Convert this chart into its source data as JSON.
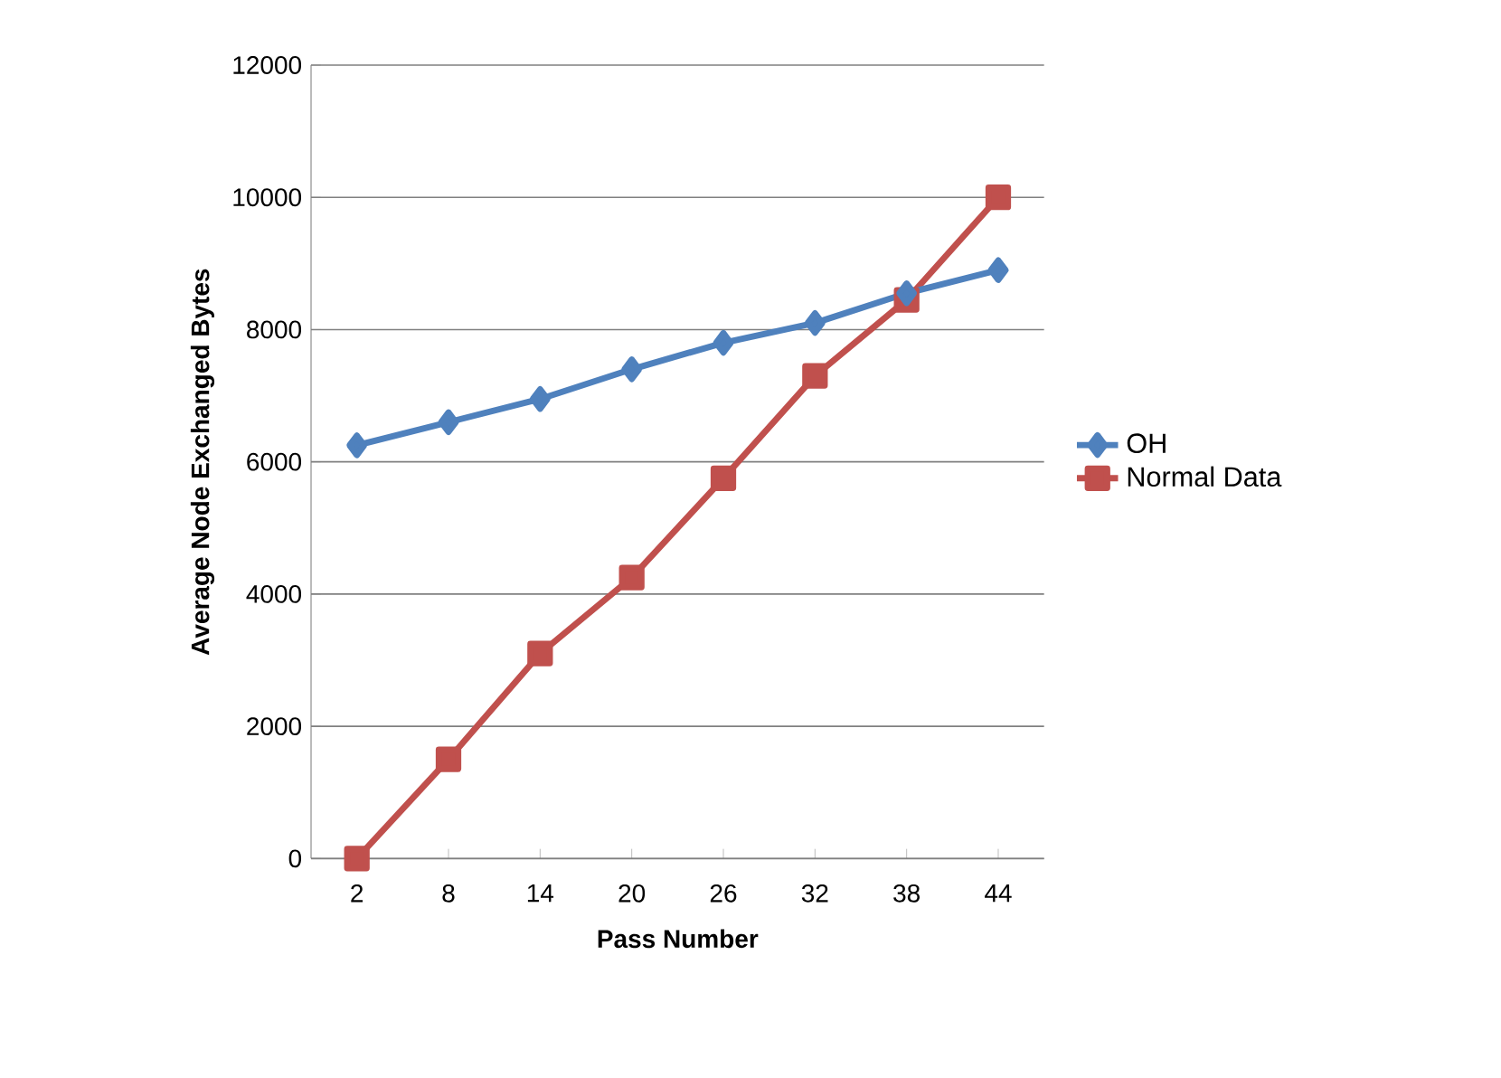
{
  "chart_data": {
    "type": "line",
    "xlabel": "Pass Number",
    "ylabel": "Average Node Exchanged Bytes",
    "categories": [
      "2",
      "8",
      "14",
      "20",
      "26",
      "32",
      "38",
      "44"
    ],
    "series": [
      {
        "name": "OH",
        "color": "#4f81bd",
        "marker": "diamond",
        "values": [
          6250,
          6600,
          6950,
          7400,
          7800,
          8100,
          8550,
          8900
        ]
      },
      {
        "name": "Normal Data",
        "color": "#c0504d",
        "marker": "square",
        "values": [
          0,
          1500,
          3100,
          4250,
          5750,
          7300,
          8450,
          10000
        ]
      }
    ],
    "ylim": [
      0,
      12000
    ],
    "yticks": [
      0,
      2000,
      4000,
      6000,
      8000,
      10000,
      12000
    ],
    "grid": "y",
    "legend": "right",
    "line_style": "solid"
  }
}
